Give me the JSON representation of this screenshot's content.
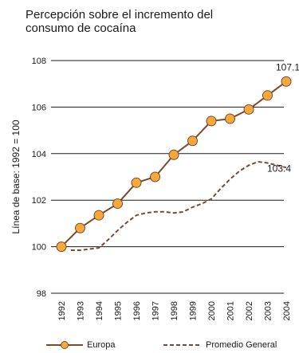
{
  "chart_data": {
    "type": "line",
    "title_lines": [
      "Percepción sobre el incremento del",
      "consumo de cocaína"
    ],
    "ylabel": "Línea de base:  1992  = 100",
    "xlabel": "",
    "ylim": [
      98,
      108
    ],
    "yticks": [
      "98",
      "100",
      "102",
      "104",
      "106",
      "108"
    ],
    "categories": [
      "1992",
      "1993",
      "1994",
      "1995",
      "1996",
      "1997",
      "1998",
      "1999",
      "2000",
      "2001",
      "2002",
      "2003",
      "2004"
    ],
    "grid": "horizontal",
    "legend_position": "bottom",
    "series": [
      {
        "name": "Europa",
        "style": "solid-markers",
        "color": "#7a4a2e",
        "marker_color": "#f5a93b",
        "x": [
          1992,
          1993,
          1994,
          1995,
          1996,
          1997,
          1998,
          1999,
          2000,
          2001,
          2002,
          2003,
          2004
        ],
        "values": [
          100.0,
          100.8,
          101.35,
          101.85,
          102.75,
          103.0,
          103.95,
          104.55,
          105.4,
          105.5,
          105.9,
          106.5,
          107.1
        ],
        "end_label": "107.1"
      },
      {
        "name": "Promedio General",
        "style": "dashed",
        "color": "#7a4a2e",
        "x": [
          1992.5,
          1993.0,
          1993.5,
          1994.0,
          1994.5,
          1995.0,
          1995.5,
          1996.0,
          1996.5,
          1997.0,
          1997.5,
          1998.0,
          1998.5,
          1999.0,
          1999.5,
          2000.0,
          2000.5,
          2001.0,
          2001.5,
          2002.0,
          2002.5,
          2003.0,
          2003.5,
          2004.0
        ],
        "values": [
          99.85,
          99.85,
          99.9,
          99.95,
          100.3,
          100.7,
          101.05,
          101.35,
          101.45,
          101.5,
          101.5,
          101.45,
          101.5,
          101.7,
          101.85,
          102.05,
          102.5,
          102.9,
          103.25,
          103.5,
          103.65,
          103.6,
          103.5,
          103.4
        ],
        "end_label": "103.4"
      }
    ]
  }
}
